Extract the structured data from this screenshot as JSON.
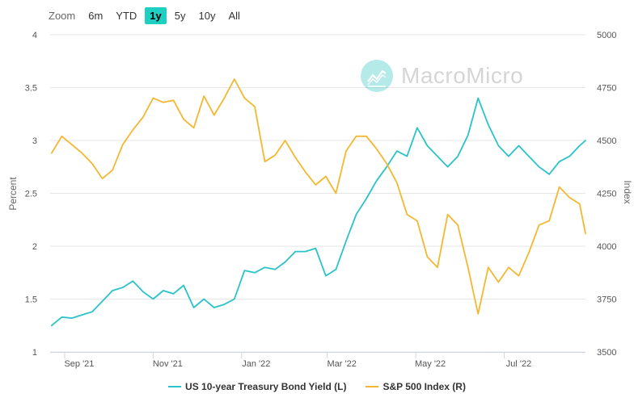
{
  "zoom": {
    "label": "Zoom",
    "options": [
      "6m",
      "YTD",
      "1y",
      "5y",
      "10y",
      "All"
    ],
    "active": "1y"
  },
  "watermark": {
    "text": "MacroMicro"
  },
  "colors": {
    "yield": "#2ac3c9",
    "spx": "#f5b731",
    "grid": "#e6e6e6",
    "axis": "#ccd6eb",
    "zoom_active": "#1ecfc2"
  },
  "chart_data": {
    "type": "line",
    "title": "",
    "xlabel": "",
    "ylabel_left": "Percent",
    "ylabel_right": "Index",
    "x_ticks": [
      "Sep '21",
      "Nov '21",
      "Jan '22",
      "Mar '22",
      "May '22",
      "Jul '22"
    ],
    "x_tick_dates": [
      "2021-09-01",
      "2021-11-01",
      "2022-01-01",
      "2022-03-01",
      "2022-05-01",
      "2022-07-01"
    ],
    "x_range": [
      "2021-08-22",
      "2022-08-26"
    ],
    "ylim_left": [
      1,
      4
    ],
    "y_ticks_left": [
      "1",
      "1.5",
      "2",
      "2.5",
      "3",
      "3.5",
      "4"
    ],
    "ylim_right": [
      3500,
      5000
    ],
    "y_ticks_right": [
      "3500",
      "3750",
      "4000",
      "4250",
      "4500",
      "4750",
      "5000"
    ],
    "grid": true,
    "legend_position": "bottom",
    "series": [
      {
        "name": "US 10-year Treasury Bond Yield (L)",
        "axis": "left",
        "x": [
          "2021-08-23",
          "2021-08-30",
          "2021-09-06",
          "2021-09-13",
          "2021-09-20",
          "2021-09-27",
          "2021-10-04",
          "2021-10-11",
          "2021-10-18",
          "2021-10-25",
          "2021-11-01",
          "2021-11-08",
          "2021-11-15",
          "2021-11-22",
          "2021-11-29",
          "2021-12-06",
          "2021-12-13",
          "2021-12-20",
          "2021-12-27",
          "2022-01-03",
          "2022-01-10",
          "2022-01-17",
          "2022-01-24",
          "2022-01-31",
          "2022-02-07",
          "2022-02-14",
          "2022-02-21",
          "2022-02-28",
          "2022-03-07",
          "2022-03-14",
          "2022-03-21",
          "2022-03-28",
          "2022-04-04",
          "2022-04-11",
          "2022-04-18",
          "2022-04-25",
          "2022-05-02",
          "2022-05-09",
          "2022-05-16",
          "2022-05-23",
          "2022-05-30",
          "2022-06-06",
          "2022-06-13",
          "2022-06-20",
          "2022-06-27",
          "2022-07-04",
          "2022-07-11",
          "2022-07-18",
          "2022-07-25",
          "2022-08-01",
          "2022-08-08",
          "2022-08-15",
          "2022-08-22",
          "2022-08-26"
        ],
        "values": [
          1.25,
          1.33,
          1.32,
          1.35,
          1.38,
          1.48,
          1.58,
          1.61,
          1.67,
          1.57,
          1.5,
          1.58,
          1.55,
          1.63,
          1.42,
          1.5,
          1.42,
          1.45,
          1.5,
          1.77,
          1.75,
          1.8,
          1.78,
          1.85,
          1.95,
          1.95,
          1.98,
          1.72,
          1.78,
          2.05,
          2.3,
          2.45,
          2.62,
          2.75,
          2.9,
          2.85,
          3.12,
          2.95,
          2.85,
          2.75,
          2.85,
          3.05,
          3.4,
          3.15,
          2.95,
          2.85,
          2.95,
          2.85,
          2.75,
          2.68,
          2.8,
          2.85,
          2.95,
          3.0
        ]
      },
      {
        "name": "S&P 500 Index (R)",
        "axis": "right",
        "x": [
          "2021-08-23",
          "2021-08-30",
          "2021-09-06",
          "2021-09-13",
          "2021-09-20",
          "2021-09-27",
          "2021-10-04",
          "2021-10-11",
          "2021-10-18",
          "2021-10-25",
          "2021-11-01",
          "2021-11-08",
          "2021-11-15",
          "2021-11-22",
          "2021-11-29",
          "2021-12-06",
          "2021-12-13",
          "2021-12-20",
          "2021-12-27",
          "2022-01-03",
          "2022-01-10",
          "2022-01-17",
          "2022-01-24",
          "2022-01-31",
          "2022-02-07",
          "2022-02-14",
          "2022-02-21",
          "2022-02-28",
          "2022-03-07",
          "2022-03-14",
          "2022-03-21",
          "2022-03-28",
          "2022-04-04",
          "2022-04-11",
          "2022-04-18",
          "2022-04-25",
          "2022-05-02",
          "2022-05-09",
          "2022-05-16",
          "2022-05-23",
          "2022-05-30",
          "2022-06-06",
          "2022-06-13",
          "2022-06-20",
          "2022-06-27",
          "2022-07-04",
          "2022-07-11",
          "2022-07-18",
          "2022-07-25",
          "2022-08-01",
          "2022-08-08",
          "2022-08-15",
          "2022-08-22",
          "2022-08-26"
        ],
        "values": [
          4440,
          4520,
          4480,
          4440,
          4390,
          4320,
          4360,
          4480,
          4550,
          4610,
          4700,
          4680,
          4690,
          4600,
          4560,
          4710,
          4620,
          4700,
          4790,
          4700,
          4660,
          4400,
          4430,
          4500,
          4420,
          4350,
          4290,
          4330,
          4250,
          4450,
          4520,
          4520,
          4460,
          4390,
          4300,
          4150,
          4120,
          3950,
          3900,
          4150,
          4100,
          3900,
          3680,
          3900,
          3830,
          3900,
          3860,
          3970,
          4100,
          4120,
          4280,
          4230,
          4200,
          4060
        ]
      }
    ]
  },
  "legend": {
    "items": [
      {
        "label": "US 10-year Treasury Bond Yield (L)",
        "color": "#2ac3c9"
      },
      {
        "label": "S&P 500 Index (R)",
        "color": "#f5b731"
      }
    ]
  }
}
